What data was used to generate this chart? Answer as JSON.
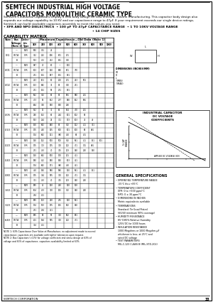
{
  "title": "SEMTECH INDUSTRIAL HIGH VOLTAGE\nCAPACITORS MONOLITHIC CERAMIC TYPE",
  "subtitle_text": "Semtech's Industrial Capacitors employ a new body design for cost efficient, volume manufacturing. This capacitor body design also\nexpands our voltage capability to 10 KV and our capacitance range to 47μF. If your requirement exceeds our single device ratings,\nSemtech can build stackable capacitors assembly to meet the values you need.",
  "bullets": [
    "• XFR AND NPO DIELECTRICS  • 100 pF TO 47μF CAPACITANCE RANGE  • 1 TO 10KV VOLTAGE RANGE",
    "• 14 CHIP SIZES"
  ],
  "capability_matrix": "CAPABILITY MATRIX",
  "graph_title": "INDUSTRIAL CAPACITOR\nDC VOLTAGE\nCOEFFICIENTS",
  "general_specs_title": "GENERAL SPECIFICATIONS",
  "general_specs": [
    "• OPERATING TEMPERATURE RANGE\n   -55°C thru +85°C",
    "• TEMPERATURE COEFFICIENT\n   XFR: 0 to +500 ppm/°C\n   NPO: 0 ± 30 ppm/°C",
    "• DIMENSIONS IN INCHES\n   Metric equivalents available",
    "• TERMINATIONS\n   Standard: Tin/Lead Plated\n   (60/40 minimum 90% coverage)",
    "• HUMIDITY RESISTANCE\n   85°C/85% Relative Humidity\n   125V DC for 1000 hours",
    "• INSULATION RESISTANCE\n   1000 Megohms or 1000 Megohm-μF\n   whichever is less, at 25°C and\n   rated DC voltage",
    "• TEST PARAMETERS\n   MIL-C-123 CLASS B (MIL-STD-202)"
  ],
  "page_number": "33",
  "footer": "SEMTECH CORPORATION",
  "volt_headers": [
    "1KV",
    "2KV",
    "3KV",
    "4KV",
    "5KV",
    "6KV",
    "7KV",
    "8KV",
    "9KV",
    "10KV"
  ],
  "sizes_data": [
    {
      "size": "0.G",
      "rows": [
        {
          "bv": "—",
          "dt": "NPO",
          "vals": [
            "690",
            "301",
            "21",
            "",
            "",
            "",
            "",
            "",
            "",
            ""
          ]
        },
        {
          "bv": "Y5CW",
          "dt": "XFR",
          "vals": [
            "362",
            "222",
            "106",
            "671",
            "271",
            "",
            "",
            "",
            "",
            ""
          ]
        },
        {
          "bv": "B",
          "dt": "",
          "vals": [
            "513",
            "472",
            "232",
            "821",
            "360",
            "",
            "",
            "",
            "",
            ""
          ]
        }
      ]
    },
    {
      "size": ".001",
      "rows": [
        {
          "bv": "—",
          "dt": "NPO",
          "vals": [
            "987",
            "70",
            "60",
            "—",
            "100",
            "",
            "",
            "",
            "",
            ""
          ]
        },
        {
          "bv": "Y5CW",
          "dt": "XFR",
          "vals": [
            "803",
            "677",
            "130",
            "680",
            "671",
            "770",
            "",
            "",
            "",
            ""
          ]
        },
        {
          "bv": "B",
          "dt": "",
          "vals": [
            "271",
            "131",
            "187",
            "191",
            "191",
            "",
            "",
            "",
            "",
            ""
          ]
        }
      ]
    },
    {
      "size": ".002",
      "rows": [
        {
          "bv": "—",
          "dt": "NPO",
          "vals": [
            "223",
            "101",
            "80",
            "200",
            "271",
            "223",
            "501",
            "",
            "",
            ""
          ]
        },
        {
          "bv": "Y5CW",
          "dt": "XFR",
          "vals": [
            "153",
            "882",
            "33",
            "81",
            "360",
            "271",
            "",
            "",
            "",
            ""
          ]
        },
        {
          "bv": "B",
          "dt": "",
          "vals": [
            "271",
            "131",
            "85",
            "271",
            "191",
            "",
            "",
            "",
            "",
            ""
          ]
        }
      ]
    },
    {
      "size": ".003",
      "rows": [
        {
          "bv": "—",
          "dt": "NPO",
          "vals": [
            "562",
            "302",
            "96",
            "87",
            "581",
            "580",
            "211",
            "",
            "",
            ""
          ]
        },
        {
          "bv": "Y5CW",
          "dt": "XFR",
          "vals": [
            "473",
            "52",
            "662",
            "277",
            "180",
            "162",
            "581",
            "",
            "",
            ""
          ]
        },
        {
          "bv": "B",
          "dt": "",
          "vals": [
            "644",
            "330",
            "540",
            "540",
            "240",
            "",
            "",
            "",
            "",
            ""
          ]
        }
      ]
    },
    {
      "size": ".005",
      "rows": [
        {
          "bv": "—",
          "dt": "NPO",
          "vals": [
            "552",
            "92",
            "37",
            "61",
            "604",
            "470",
            "221",
            "",
            "",
            ""
          ]
        },
        {
          "bv": "Y5CW",
          "dt": "XFR",
          "vals": [
            "250",
            "152",
            "62",
            "244",
            "101",
            "102",
            "81",
            "",
            "",
            ""
          ]
        },
        {
          "bv": "B",
          "dt": "",
          "vals": [
            "523",
            "224",
            "25",
            "371",
            "173",
            "103",
            "71",
            "49",
            "",
            ""
          ]
        }
      ]
    },
    {
      "size": ".010",
      "rows": [
        {
          "bv": "—",
          "dt": "NPO",
          "vals": [
            "150",
            "862",
            "640",
            "82",
            "302",
            "122",
            "411",
            "351",
            "",
            ""
          ]
        },
        {
          "bv": "Y5CW",
          "dt": "XFR",
          "vals": [
            "175",
            "440",
            "135",
            "800",
            "101",
            "100",
            "63",
            "481",
            "",
            ""
          ]
        },
        {
          "bv": "B",
          "dt": "",
          "vals": [
            "174",
            "862",
            "121",
            "380",
            "450",
            "63",
            "431",
            "",
            "",
            ""
          ]
        }
      ]
    },
    {
      "size": ".020",
      "rows": [
        {
          "bv": "—",
          "dt": "NPO",
          "vals": [
            "130",
            "122",
            "500",
            "500",
            "302",
            "561",
            "411",
            "151",
            "101",
            ""
          ]
        },
        {
          "bv": "Y5CW",
          "dt": "XFR",
          "vals": [
            "175",
            "313",
            "175",
            "310",
            "202",
            "471",
            "331",
            "481",
            "",
            ""
          ]
        },
        {
          "bv": "B",
          "dt": "",
          "vals": [
            "271",
            "753",
            "70",
            "325",
            "203",
            "940",
            "210",
            "140",
            "",
            ""
          ]
        }
      ]
    },
    {
      "size": ".040",
      "rows": [
        {
          "bv": "—",
          "dt": "NPO",
          "vals": [
            "120",
            "862",
            "500",
            "170",
            "201",
            "411",
            "",
            "",
            "",
            ""
          ]
        },
        {
          "bv": "Y5CW",
          "dt": "XFR",
          "vals": [
            "180",
            "462",
            "180",
            "540",
            "103",
            "461",
            "",
            "",
            "",
            ""
          ]
        },
        {
          "bv": "B",
          "dt": "",
          "vals": [
            "174",
            "862",
            "171",
            "380",
            "450",
            "461",
            "",
            "",
            "",
            ""
          ]
        }
      ]
    },
    {
      "size": ".080",
      "rows": [
        {
          "bv": "—",
          "dt": "NPO",
          "vals": [
            "450",
            "140",
            "580",
            "580",
            "120",
            "561",
            "411",
            "151",
            "",
            ""
          ]
        },
        {
          "bv": "Y5CW",
          "dt": "XFR",
          "vals": [
            "175",
            "344",
            "575",
            "310",
            "202",
            "471",
            "331",
            "",
            "",
            ""
          ]
        },
        {
          "bv": "B",
          "dt": "",
          "vals": [
            "371",
            "753",
            "70",
            "325",
            "203",
            "940",
            "210",
            "",
            "",
            ""
          ]
        }
      ]
    },
    {
      "size": ".160",
      "rows": [
        {
          "bv": "—",
          "dt": "NPO",
          "vals": [
            "185",
            "42",
            "120",
            "220",
            "120",
            "120",
            "",
            "",
            "",
            ""
          ]
        },
        {
          "bv": "Y5CW",
          "dt": "XFR",
          "vals": [
            "104",
            "433",
            "320",
            "125",
            "342",
            "940",
            "210",
            "",
            "",
            ""
          ]
        },
        {
          "bv": "B",
          "dt": "",
          "vals": [
            "274",
            "421",
            "",
            "",
            "",
            "",
            "",
            "",
            "",
            ""
          ]
        }
      ]
    },
    {
      "size": ".320",
      "rows": [
        {
          "bv": "—",
          "dt": "NPO",
          "vals": [
            "185",
            "123",
            "220",
            "235",
            "120",
            "561",
            "",
            "",
            "",
            ""
          ]
        },
        {
          "bv": "Y5CW",
          "dt": "XFR",
          "vals": [
            "174",
            "533",
            "175",
            "125",
            "542",
            "940",
            "",
            "",
            "",
            ""
          ]
        },
        {
          "bv": "B",
          "dt": "",
          "vals": [
            "271",
            "274",
            "421",
            "",
            "",
            "",
            "",
            "",
            "",
            ""
          ]
        }
      ]
    },
    {
      "size": ".640",
      "rows": [
        {
          "bv": "—",
          "dt": "NPO",
          "vals": [
            "185",
            "82",
            "95",
            "310",
            "562",
            "181",
            "",
            "",
            "",
            ""
          ]
        },
        {
          "bv": "Y5CW",
          "dt": "XFR",
          "vals": [
            "201",
            "144",
            "575",
            "310",
            "202",
            "471",
            "",
            "",
            "",
            ""
          ]
        },
        {
          "bv": "B",
          "dt": "",
          "vals": [
            "374",
            "421",
            "",
            "",
            "",
            "",
            "",
            "",
            "",
            ""
          ]
        }
      ]
    }
  ]
}
